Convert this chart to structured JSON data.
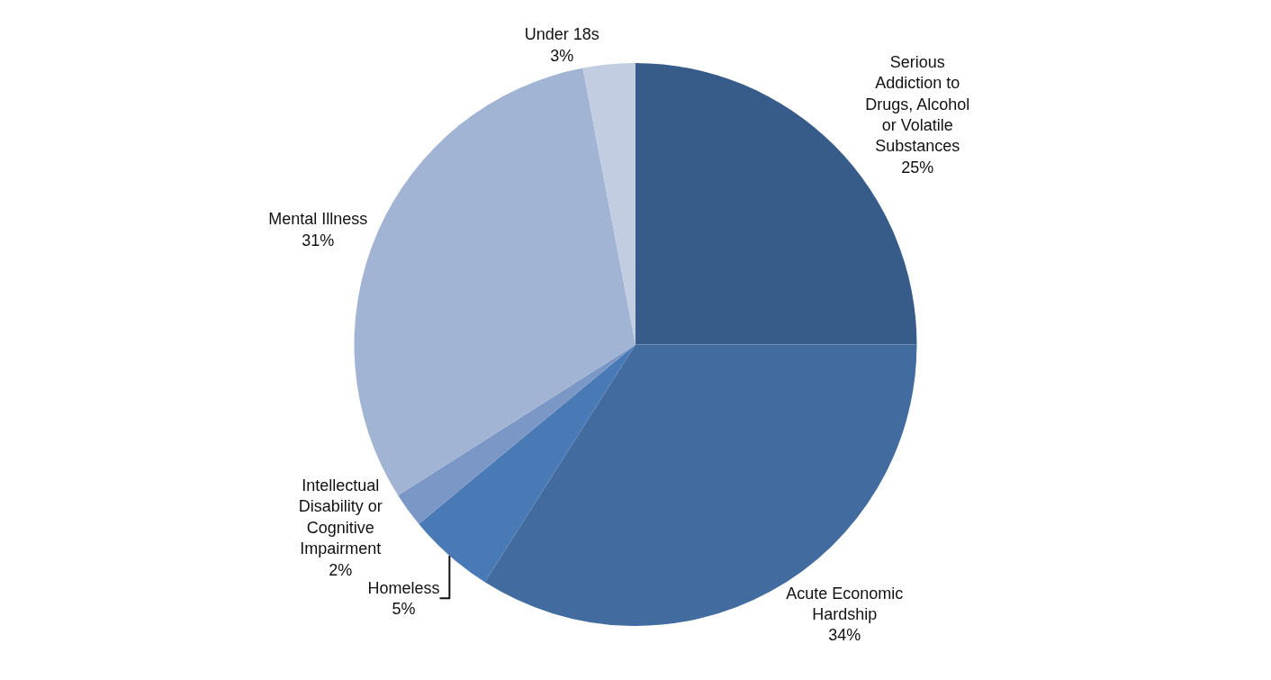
{
  "chart_data": {
    "type": "pie",
    "categories": [
      "Serious Addiction to Drugs, Alcohol or Volatile Substances",
      "Acute Economic Hardship",
      "Homeless",
      "Intellectual Disability or Cognitive Impairment",
      "Mental Illness",
      "Under 18s"
    ],
    "values": [
      25,
      34,
      5,
      2,
      31,
      3
    ],
    "value_labels": [
      "25%",
      "34%",
      "5%",
      "2%",
      "31%",
      "3%"
    ],
    "colors": [
      "#375c8a",
      "#426ca0",
      "#4a7ab5",
      "#7b97c6",
      "#a2b4d4",
      "#c2cde1"
    ]
  }
}
